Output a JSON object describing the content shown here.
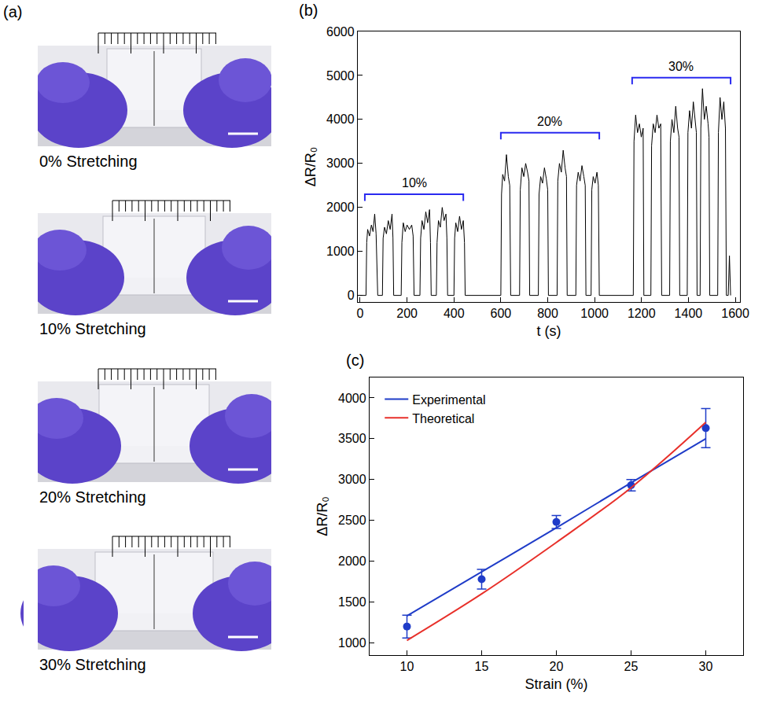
{
  "photo_panel": {
    "panel": "(a)",
    "captions": [
      "0% Stretching",
      "10% Stretching",
      "20% Stretching",
      "30% Stretching"
    ]
  },
  "chart_data": [
    {
      "panel": "(b)",
      "type": "line",
      "x_label": "t (s)",
      "y_label": "ΔR/R₀",
      "x": [
        0,
        25,
        28,
        32,
        40,
        48,
        55,
        62,
        68,
        72,
        75,
        95,
        98,
        104,
        112,
        120,
        128,
        136,
        140,
        143,
        175,
        178,
        184,
        192,
        200,
        210,
        220,
        226,
        230,
        255,
        258,
        264,
        272,
        280,
        288,
        296,
        300,
        303,
        325,
        328,
        334,
        342,
        350,
        358,
        366,
        370,
        373,
        400,
        403,
        408,
        416,
        424,
        432,
        440,
        445,
        448,
        600,
        603,
        608,
        616,
        624,
        632,
        638,
        642,
        680,
        683,
        690,
        698,
        706,
        714,
        720,
        723,
        760,
        763,
        770,
        778,
        786,
        794,
        800,
        803,
        840,
        843,
        850,
        858,
        866,
        874,
        880,
        883,
        920,
        923,
        930,
        938,
        946,
        954,
        960,
        963,
        985,
        988,
        994,
        1002,
        1010,
        1016,
        1020,
        1165,
        1168,
        1175,
        1183,
        1191,
        1199,
        1207,
        1210,
        1240,
        1243,
        1250,
        1258,
        1266,
        1274,
        1282,
        1286,
        1320,
        1323,
        1330,
        1338,
        1346,
        1354,
        1360,
        1363,
        1395,
        1398,
        1405,
        1413,
        1421,
        1429,
        1434,
        1437,
        1450,
        1453,
        1460,
        1468,
        1476,
        1484,
        1488,
        1491,
        1525,
        1528,
        1535,
        1543,
        1551,
        1558,
        1562,
        1570,
        1575,
        1580
      ],
      "series": [
        {
          "color": "#000000",
          "values": [
            0,
            0,
            1200,
            1500,
            1350,
            1600,
            1450,
            1850,
            1400,
            200,
            0,
            0,
            1300,
            1550,
            1400,
            1700,
            1500,
            1850,
            1300,
            0,
            0,
            1200,
            1650,
            1450,
            1600,
            1500,
            1600,
            1350,
            0,
            0,
            1300,
            1700,
            1500,
            1900,
            1650,
            1950,
            1200,
            0,
            0,
            1200,
            1700,
            1550,
            2000,
            1700,
            1850,
            1300,
            0,
            0,
            1300,
            1650,
            1450,
            1800,
            1500,
            1700,
            1200,
            0,
            0,
            2300,
            2750,
            2600,
            3200,
            2700,
            2500,
            0,
            0,
            2400,
            2900,
            2700,
            3000,
            2800,
            2600,
            0,
            0,
            2300,
            2700,
            2550,
            2900,
            2650,
            2400,
            0,
            0,
            2600,
            3000,
            2800,
            3300,
            2900,
            2700,
            0,
            0,
            2500,
            2800,
            2600,
            2950,
            2700,
            2500,
            0,
            0,
            2400,
            2700,
            2550,
            2800,
            2500,
            0,
            0,
            3500,
            4100,
            3700,
            3900,
            3600,
            3800,
            0,
            0,
            3400,
            3900,
            3700,
            4100,
            3800,
            3900,
            0,
            0,
            3500,
            4000,
            3700,
            4300,
            3800,
            3600,
            0,
            0,
            3700,
            4200,
            3800,
            4400,
            3900,
            3700,
            0,
            0,
            3800,
            4700,
            4000,
            4300,
            3900,
            3600,
            0,
            0,
            3700,
            4500,
            4000,
            4400,
            3800,
            0,
            0,
            900,
            0
          ]
        }
      ],
      "xlim": [
        -10,
        1620
      ],
      "xticks": [
        0,
        200,
        400,
        600,
        800,
        1000,
        1200,
        1400,
        1600
      ],
      "ylim": [
        -150,
        6000
      ],
      "yticks": [
        0,
        1000,
        2000,
        3000,
        4000,
        5000,
        6000
      ],
      "grid": false,
      "annotations": [
        {
          "text": "10%",
          "x0": 20,
          "x1": 440,
          "y": 2300
        },
        {
          "text": "20%",
          "x0": 600,
          "x1": 1020,
          "y": 3700
        },
        {
          "text": "30%",
          "x0": 1160,
          "x1": 1580,
          "y": 4950
        }
      ]
    },
    {
      "panel": "(c)",
      "type": "line",
      "x_label": "Strain (%)",
      "y_label": "ΔR/R₀",
      "x": [
        10,
        15,
        20,
        25,
        30
      ],
      "series": [
        {
          "type": "scatter",
          "marker": "circle",
          "color": "#1f3cc8",
          "values": [
            1200,
            1780,
            2480,
            2930,
            3630
          ],
          "errors": [
            140,
            120,
            80,
            70,
            240
          ]
        },
        {
          "name": "Experimental",
          "type": "line",
          "line_style": "solid",
          "color": "#1f3cc8",
          "values": [
            1330,
            1870,
            2410,
            2960,
            3500
          ]
        },
        {
          "name": "Theoretical",
          "type": "line",
          "line_style": "solid",
          "color": "#e8302a",
          "values": [
            1030,
            1600,
            2230,
            2900,
            3700
          ]
        }
      ],
      "xlim": [
        7.5,
        32.5
      ],
      "xticks": [
        10,
        15,
        20,
        25,
        30
      ],
      "ylim": [
        850,
        4250
      ],
      "yticks": [
        1000,
        1500,
        2000,
        2500,
        3000,
        3500,
        4000
      ],
      "grid": false,
      "legend": "top-left"
    }
  ]
}
